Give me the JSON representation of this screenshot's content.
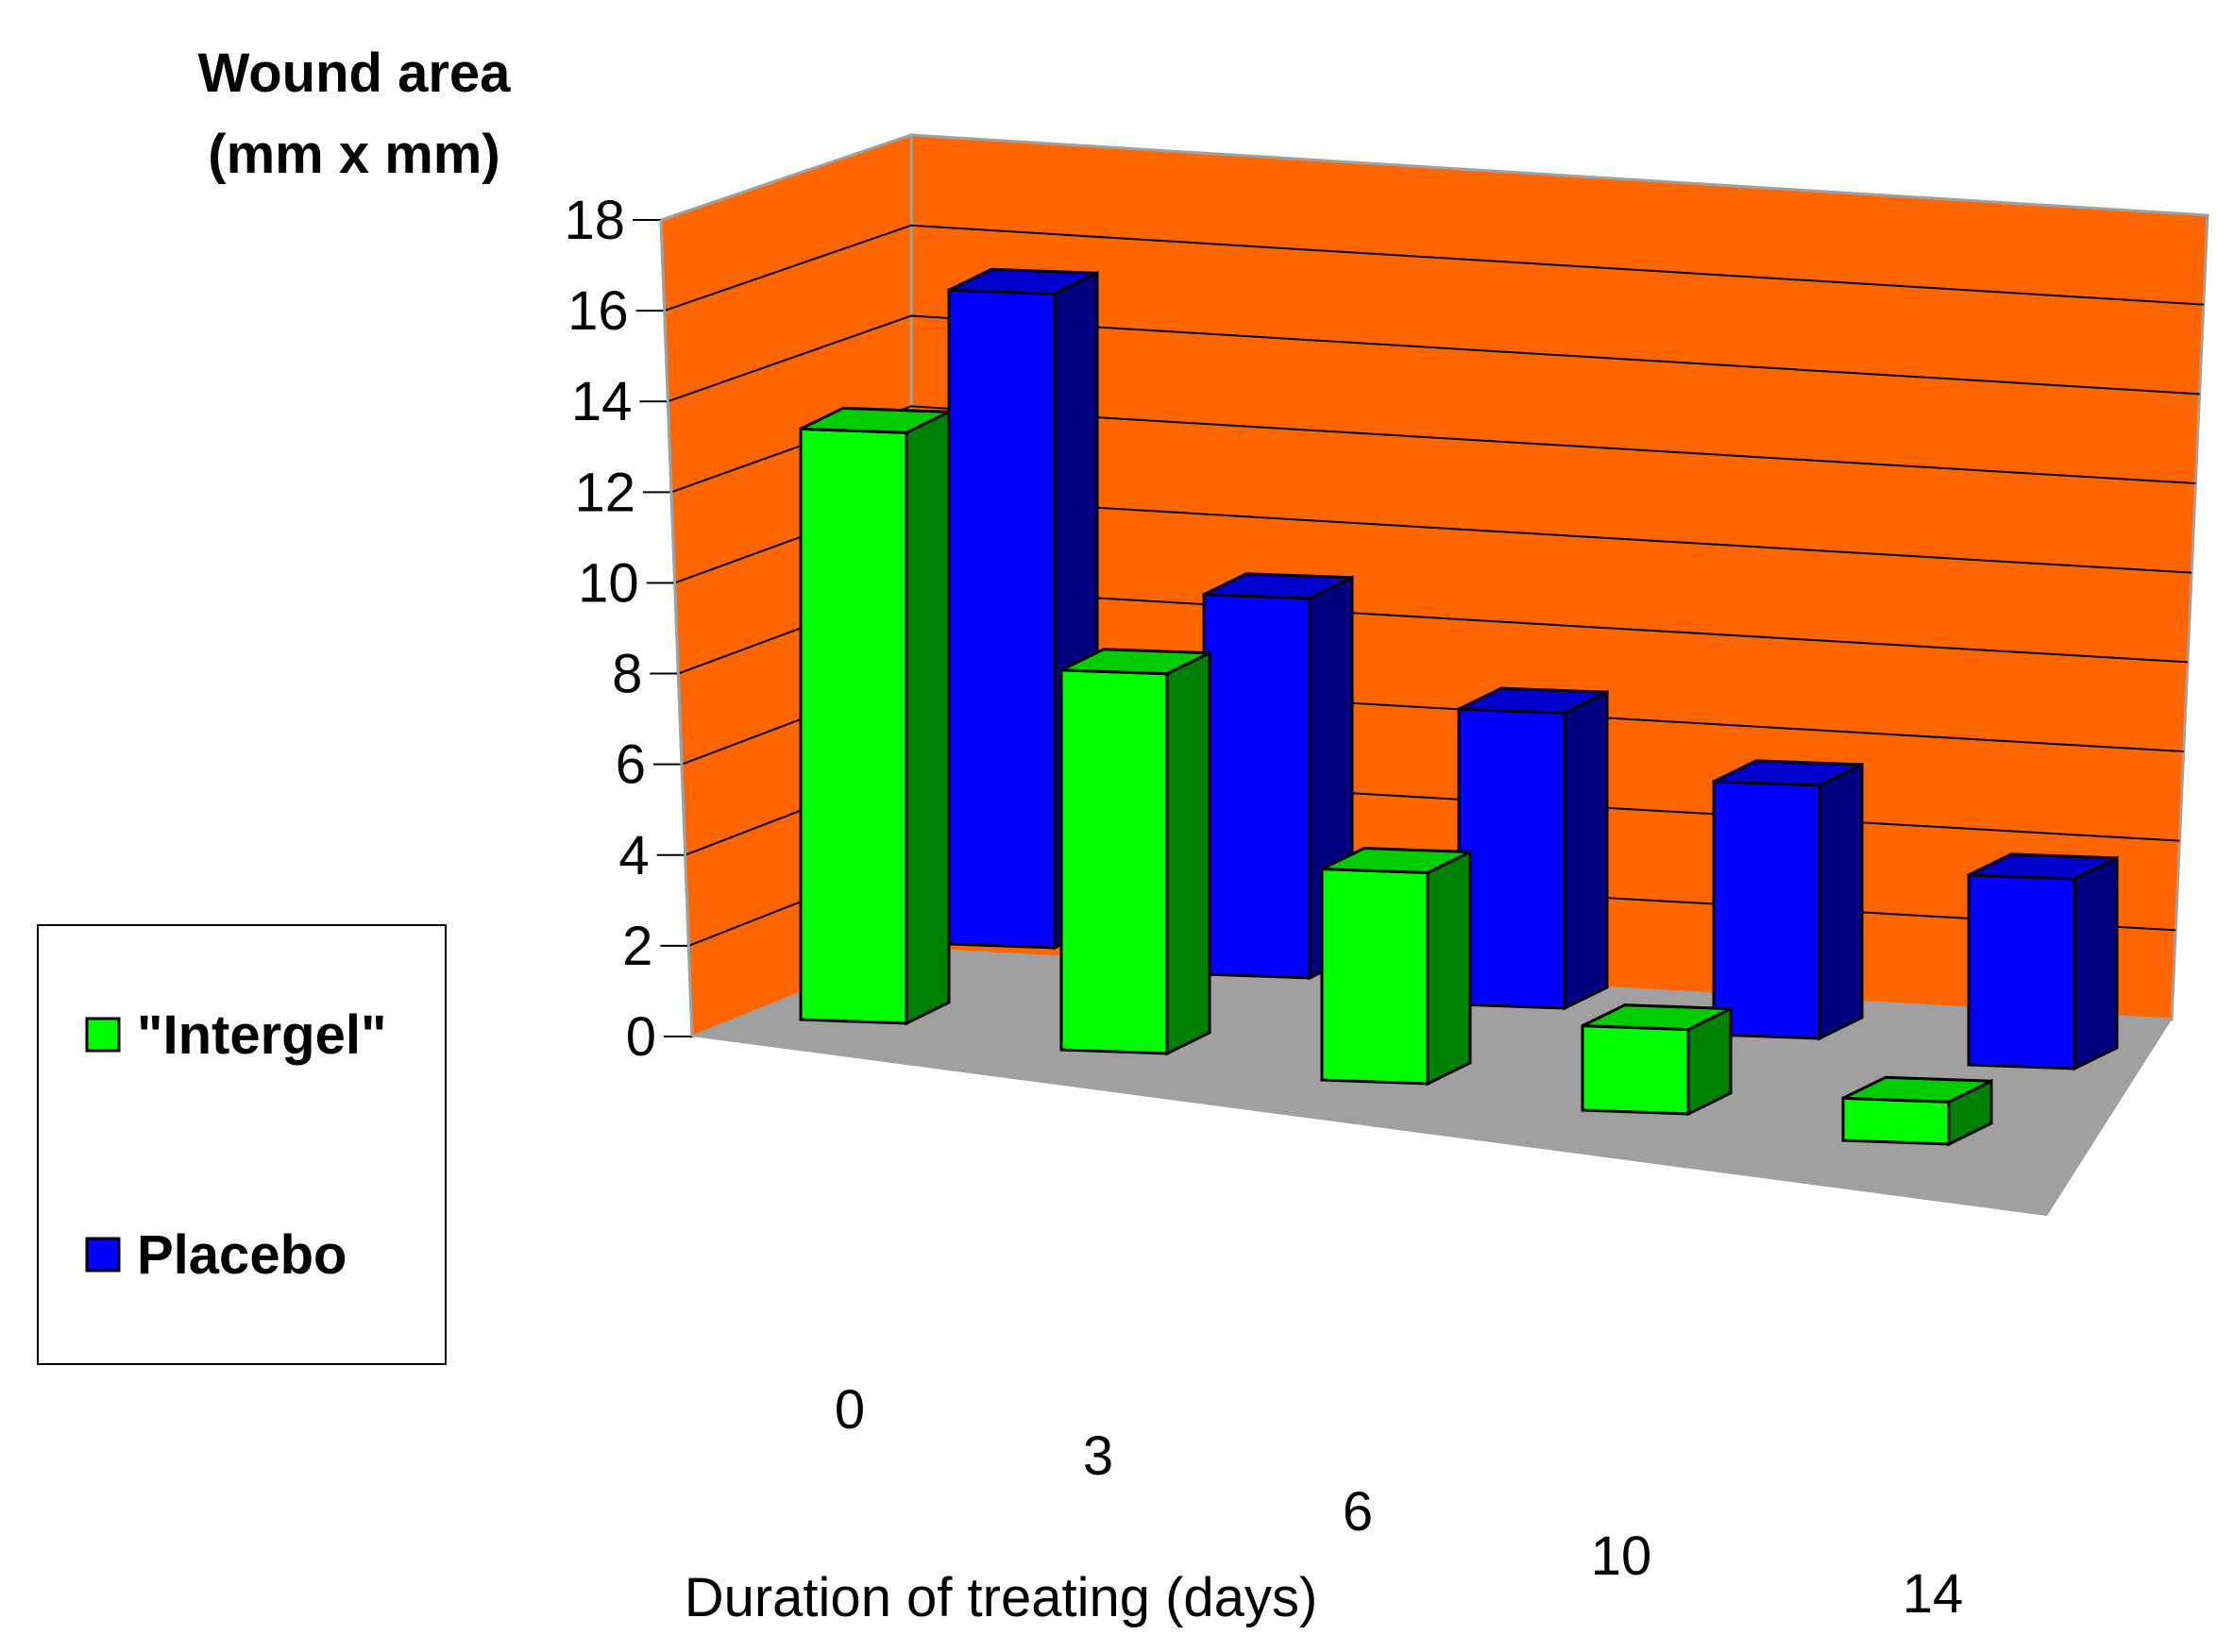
{
  "chart_data": {
    "type": "bar",
    "title": "",
    "ylabel_line1": "Wound area",
    "ylabel_line2": "(mm x mm)",
    "xlabel": "Duration of treating (days)",
    "categories": [
      "0",
      "3",
      "6",
      "10",
      "14"
    ],
    "ylim": [
      0,
      18
    ],
    "yticks": [
      "0",
      "2",
      "4",
      "6",
      "8",
      "10",
      "12",
      "14",
      "16",
      "18"
    ],
    "series": [
      {
        "name": "\"Intergel\"",
        "values": [
          14,
          9,
          5,
          2,
          1
        ],
        "color": "#00ff00",
        "side": "#008000",
        "top": "#00cc00"
      },
      {
        "name": "Placebo",
        "values": [
          15.5,
          9,
          7,
          6,
          4.5
        ],
        "color": "#0000ff",
        "side": "#000080",
        "top": "#0000cc"
      }
    ],
    "wall_color": "#ff6600",
    "floor_color": "#a0a0a0",
    "legend_position": "left"
  }
}
